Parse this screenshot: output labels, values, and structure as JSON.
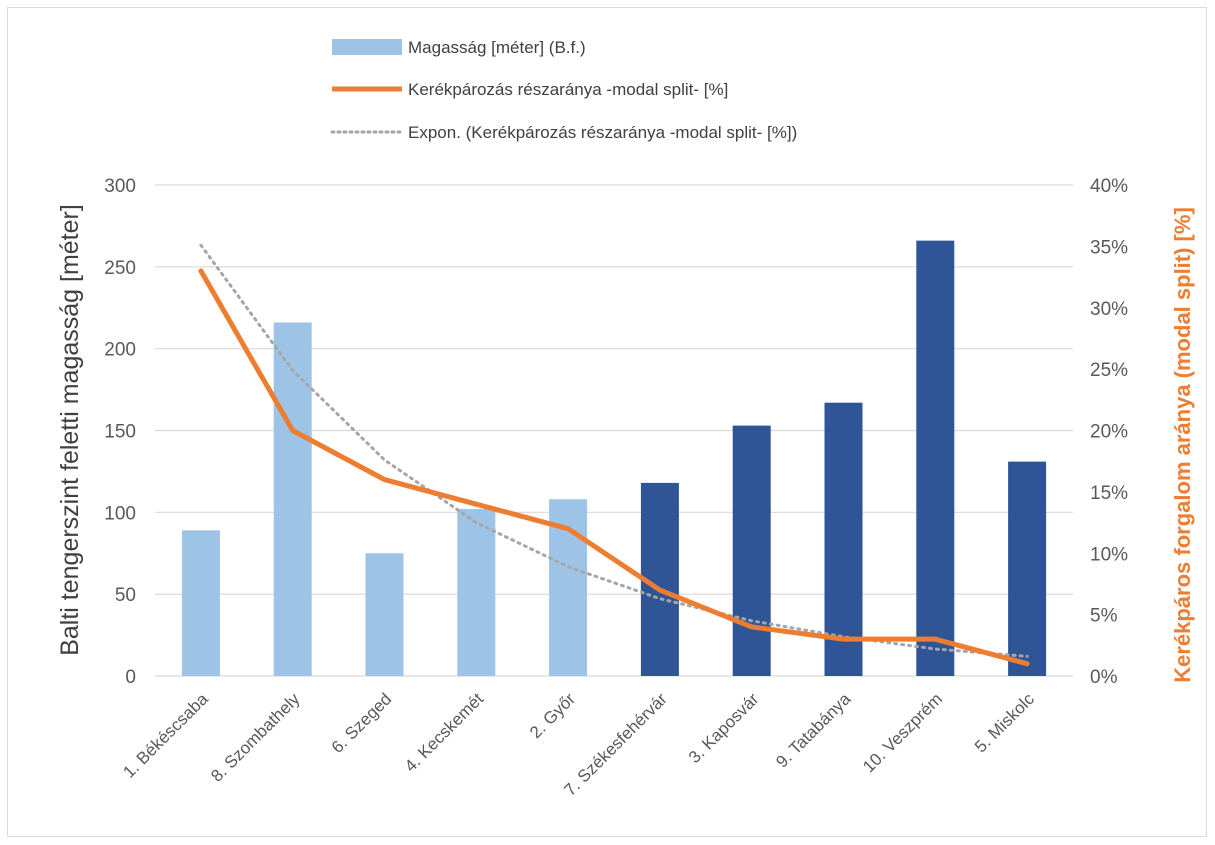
{
  "chart_data": {
    "type": "bar",
    "categories": [
      "1. Békéscsaba",
      "8. Szombathely",
      "6. Szeged",
      "4. Kecskemét",
      "2. Győr",
      "7. Székesfehérvár",
      "3. Kaposvár",
      "9. Tatabánya",
      "10. Veszprém",
      "5. Miskolc"
    ],
    "series": [
      {
        "name": "Magasság [méter] (B.f.)",
        "kind": "bar",
        "axis": "left",
        "values": [
          89,
          216,
          75,
          102,
          108,
          118,
          153,
          167,
          266,
          131
        ],
        "colors": [
          "#9dc3e6",
          "#9dc3e6",
          "#9dc3e6",
          "#9dc3e6",
          "#9dc3e6",
          "#2f5597",
          "#2f5597",
          "#2f5597",
          "#2f5597",
          "#2f5597"
        ]
      },
      {
        "name": "Kerékpározás részaránya -modal split- [%]",
        "kind": "line",
        "axis": "right",
        "color": "#ed7d31",
        "values": [
          33,
          20,
          16,
          14,
          12,
          7,
          4,
          3,
          3,
          1
        ]
      },
      {
        "name": "Expon. (Kerékpározás részaránya -modal split- [%])",
        "kind": "trendline",
        "axis": "right",
        "color": "#a6a6a6",
        "values": [
          35.1,
          24.9,
          17.6,
          12.5,
          8.9,
          6.3,
          4.5,
          3.2,
          2.2,
          1.6
        ]
      }
    ],
    "ylabel": "Balti tengerszint feletti magasság [méter]",
    "ylabel_right": "Kerékpáros forgalom aránya (modal split) [%]",
    "ylim": [
      0,
      300
    ],
    "ylim_right": [
      0,
      40
    ],
    "yticks": [
      "0",
      "50",
      "100",
      "150",
      "200",
      "250",
      "300"
    ],
    "yticks_right": [
      "0%",
      "5%",
      "10%",
      "15%",
      "20%",
      "25%",
      "30%",
      "35%",
      "40%"
    ],
    "grid": true,
    "legend_position": "top"
  },
  "colors": {
    "bar_light": "#9dc3e6",
    "bar_dark": "#2f5597",
    "line": "#ed7d31",
    "trend": "#a6a6a6",
    "grid": "#d9d9d9"
  }
}
